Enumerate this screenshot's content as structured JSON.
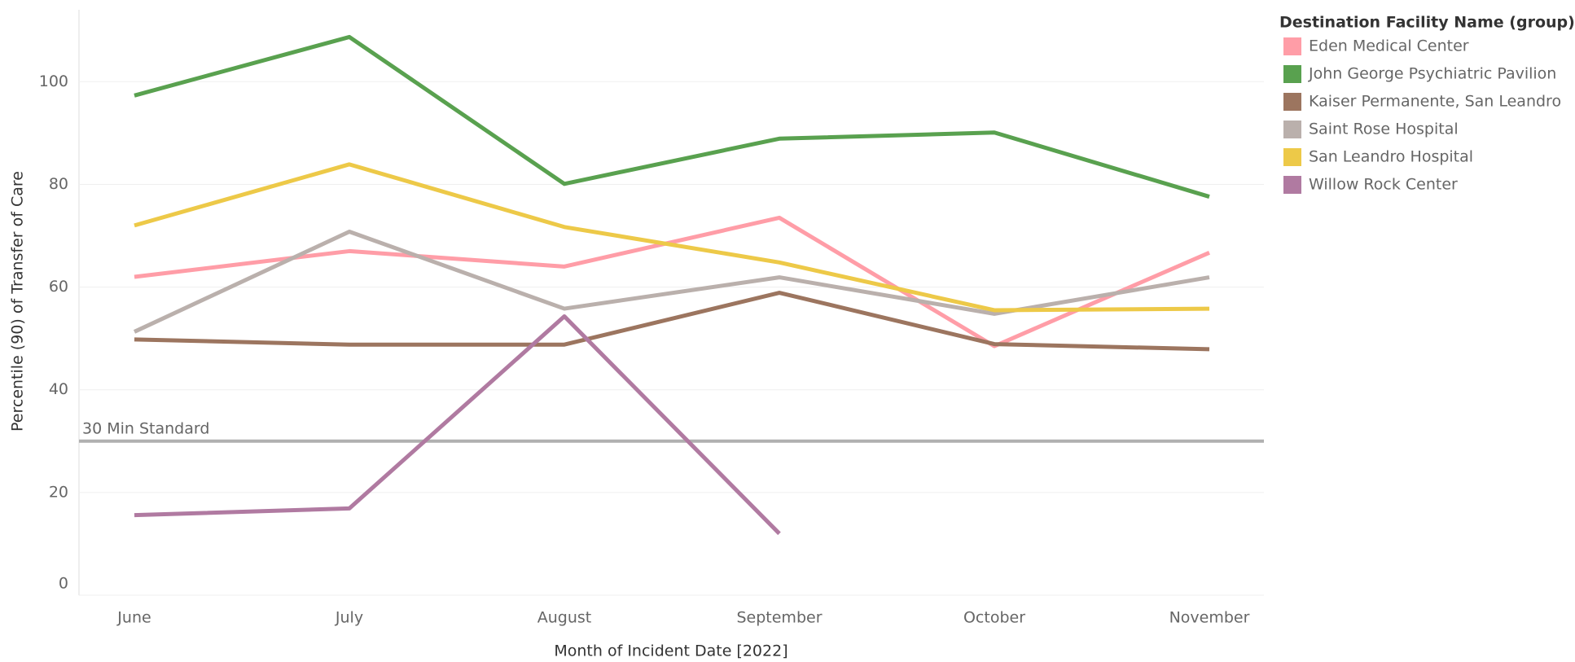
{
  "chart_data": {
    "type": "line",
    "x_label": "Month of Incident Date [2022]",
    "y_label": "Percentile (90) of Transfer of Care",
    "legend_title": "Destination Facility Name (group)",
    "categories": [
      "June",
      "July",
      "August",
      "September",
      "October",
      "November"
    ],
    "series": [
      {
        "name": "Eden Medical Center",
        "color": "#ff9da7",
        "values": [
          62.0,
          67.0,
          64.0,
          73.5,
          48.5,
          66.7
        ]
      },
      {
        "name": "John George Psychiatric Pavilion",
        "color": "#59a14f",
        "values": [
          97.3,
          108.7,
          80.1,
          88.9,
          90.1,
          77.6
        ]
      },
      {
        "name": "Kaiser Permanente, San Leandro",
        "color": "#9c755f",
        "values": [
          49.8,
          48.8,
          48.8,
          58.9,
          48.9,
          47.9
        ]
      },
      {
        "name": "Saint Rose Hospital",
        "color": "#bab0ac",
        "values": [
          51.3,
          70.8,
          55.8,
          61.9,
          54.8,
          61.9
        ]
      },
      {
        "name": "San Leandro Hospital",
        "color": "#edc948",
        "values": [
          72.0,
          83.9,
          71.7,
          64.8,
          55.5,
          55.8
        ]
      },
      {
        "name": "Willow Rock Center",
        "color": "#b07aa1",
        "values": [
          15.6,
          16.9,
          54.3,
          12.0,
          null,
          null
        ]
      }
    ],
    "reference_line": {
      "value": 30,
      "label": "30 Min Standard",
      "color": "#b0b0b0"
    },
    "ylim": [
      0,
      114
    ],
    "yticks": [
      0,
      20,
      40,
      60,
      80,
      100
    ],
    "grid": true
  }
}
